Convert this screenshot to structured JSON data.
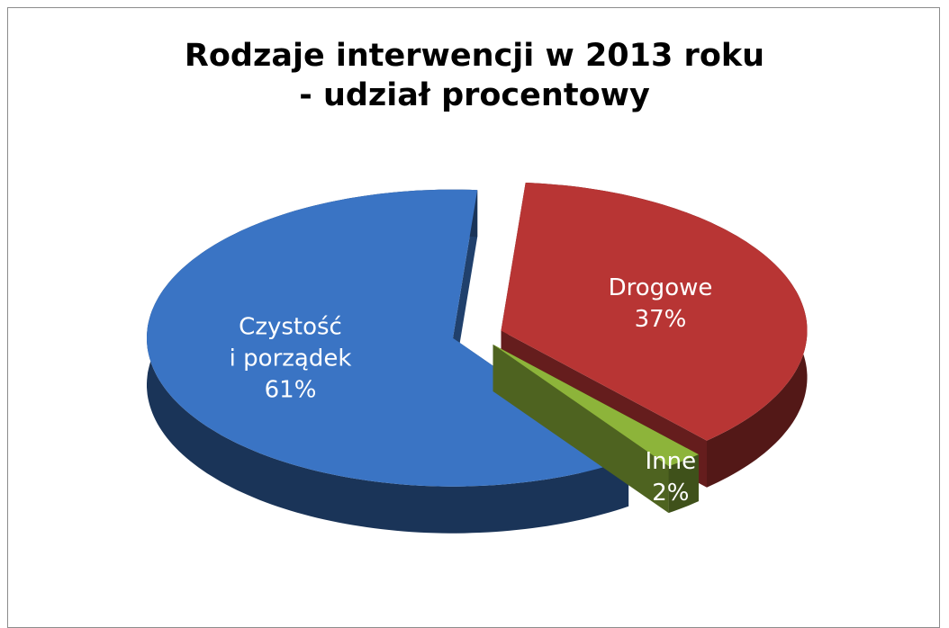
{
  "chart_data": {
    "type": "pie",
    "title": "Rodzaje interwencji w 2013 roku\n- udział procentowy",
    "categories": [
      "Drogowe",
      "Inne",
      "Czystość\ni porządek"
    ],
    "values": [
      37,
      2,
      61
    ],
    "value_labels": [
      "37%",
      "2%",
      "61%"
    ],
    "colors": [
      "#b83534",
      "#8db43a",
      "#3a74c4"
    ],
    "three_d": true
  }
}
